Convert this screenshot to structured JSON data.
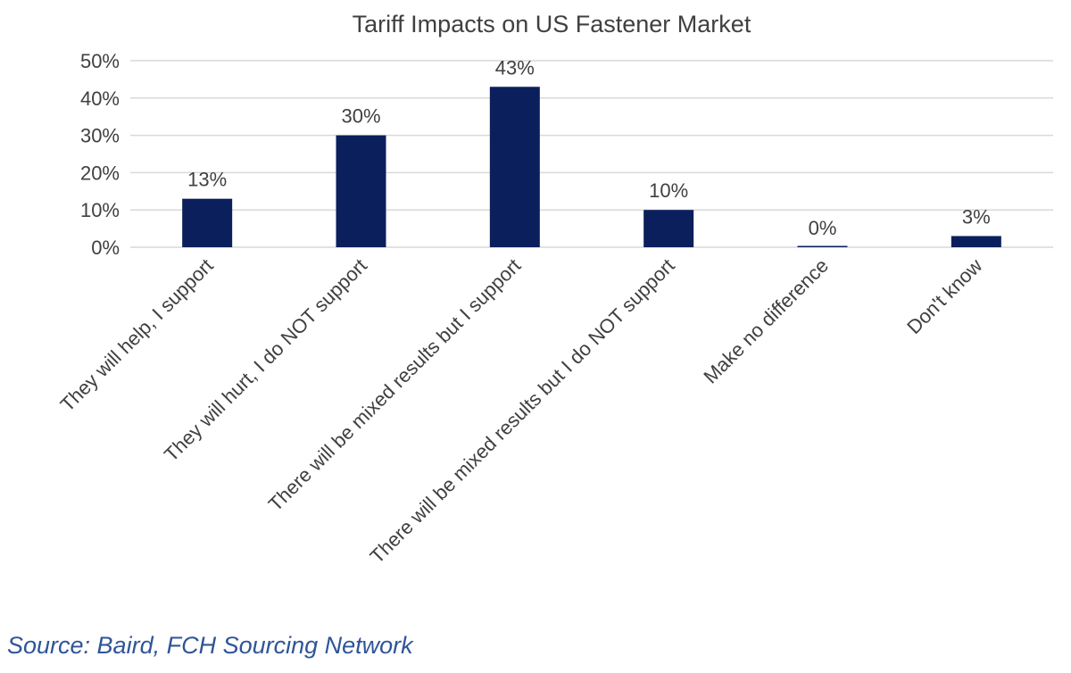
{
  "chart_data": {
    "type": "bar",
    "title": "Tariff Impacts on US Fastener Market",
    "categories": [
      "They will help, I support",
      "They will hurt, I do NOT support",
      "There will be mixed results but I support",
      "There will be mixed results but I do NOT support",
      "Make no difference",
      "Don't know"
    ],
    "values": [
      13,
      30,
      43,
      10,
      0,
      3
    ],
    "data_labels": [
      "13%",
      "30%",
      "43%",
      "10%",
      "0%",
      "3%"
    ],
    "y_ticks": [
      "0%",
      "10%",
      "20%",
      "30%",
      "40%",
      "50%"
    ],
    "ylim": [
      0,
      50
    ],
    "grid": true,
    "legend": "none",
    "bar_color": "#0b1f5c"
  },
  "source": "Source: Baird, FCH Sourcing Network"
}
